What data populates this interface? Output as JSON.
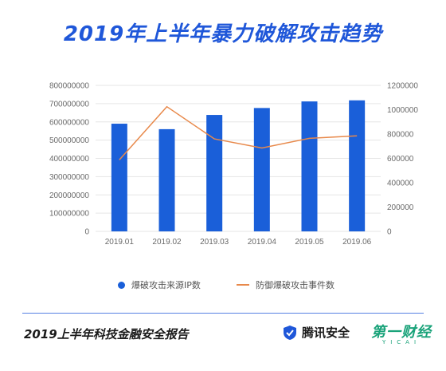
{
  "title": "2019年上半年暴力破解攻击趋势",
  "colors": {
    "bar": "#1a5fd9",
    "line": "#e8894b",
    "title": "#1f57d9",
    "grid": "#e6e6e6"
  },
  "chart_data": {
    "type": "bar+line",
    "title": "2019年上半年暴力破解攻击趋势",
    "categories": [
      "2019.01",
      "2019.02",
      "2019.03",
      "2019.04",
      "2019.05",
      "2019.06"
    ],
    "series": [
      {
        "name": "爆破攻击来源IP数",
        "type": "bar",
        "axis": "left",
        "values": [
          590000000,
          560000000,
          638000000,
          676000000,
          712000000,
          718000000
        ]
      },
      {
        "name": "防御爆破攻击事件数",
        "type": "line",
        "axis": "right",
        "values": [
          588000,
          1025000,
          760000,
          685000,
          765000,
          785000
        ]
      }
    ],
    "y_left": {
      "min": 0,
      "max": 800000000,
      "step": 100000000,
      "tick_labels": [
        "0",
        "100000000",
        "200000000",
        "300000000",
        "400000000",
        "500000000",
        "600000000",
        "700000000",
        "800000000"
      ]
    },
    "y_right": {
      "min": 0,
      "max": 1200000,
      "step": 200000,
      "tick_labels": [
        "0",
        "200000",
        "400000",
        "600000",
        "800000",
        "1000000",
        "1200000"
      ]
    },
    "grid": true,
    "legend_position": "bottom"
  },
  "legend": {
    "bar_label": "爆破攻击来源IP数",
    "line_label": "防御爆破攻击事件数"
  },
  "footer": {
    "report_title": "2019上半年科技金融安全报告",
    "brand_tencent": "腾讯安全",
    "brand_yicai": "第一财经",
    "brand_yicai_sub": "YICAI"
  }
}
